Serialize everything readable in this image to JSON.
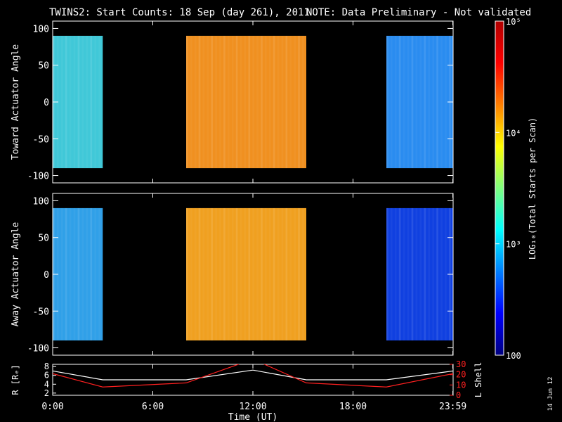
{
  "title": {
    "main": "TWINS2: Start Counts: 18 Sep (day 261), 2011",
    "note": "NOTE: Data Preliminary - Not validated",
    "note_color": "#ff2020"
  },
  "stamp": "14 Jun 12",
  "chart_data": [
    {
      "type": "heatmap",
      "name": "toward-panel",
      "ylabel": "Toward Actuator Angle",
      "ylim": [
        -110,
        110
      ],
      "yticks": [
        "100",
        "50",
        "0",
        "-50",
        "-100"
      ],
      "ytick_values": [
        100,
        50,
        0,
        -50,
        -100
      ],
      "x_range_hours": [
        0,
        24
      ],
      "angle_range": [
        -90,
        90
      ],
      "data_blocks": [
        {
          "start": 0.0,
          "end": 3.0,
          "level": "mid-high",
          "color": "#40c8d8"
        },
        {
          "start": 8.0,
          "end": 15.2,
          "level": "high",
          "color": "#f09020"
        },
        {
          "start": 20.0,
          "end": 24.0,
          "level": "mid-low",
          "color": "#2a8cf0"
        }
      ]
    },
    {
      "type": "heatmap",
      "name": "away-panel",
      "ylabel": "Away Actuator Angle",
      "ylim": [
        -110,
        110
      ],
      "yticks": [
        "100",
        "50",
        "0",
        "-50",
        "-100"
      ],
      "ytick_values": [
        100,
        50,
        0,
        -50,
        -100
      ],
      "x_range_hours": [
        0,
        24
      ],
      "angle_range": [
        -90,
        90
      ],
      "data_blocks": [
        {
          "start": 0.0,
          "end": 3.0,
          "level": "mid",
          "color": "#30a0e8"
        },
        {
          "start": 8.0,
          "end": 15.2,
          "level": "high",
          "color": "#f0a020"
        },
        {
          "start": 20.0,
          "end": 24.0,
          "level": "low",
          "color": "#1040e0"
        }
      ]
    },
    {
      "type": "line",
      "name": "orbit-panel",
      "ylabel_left": "R [Rₑ]",
      "ylabel_right": "L Shell",
      "yticks_left": [
        "8",
        "6",
        "4",
        "2"
      ],
      "ytick_values_left": [
        8,
        6,
        4,
        2
      ],
      "ylim_left": [
        1.5,
        8.5
      ],
      "yticks_right": [
        "30",
        "20",
        "10",
        "0"
      ],
      "ytick_values_right": [
        30,
        20,
        10,
        0
      ],
      "ylim_right": [
        0,
        30
      ],
      "x": [
        0,
        3,
        8,
        12,
        15.2,
        20,
        24
      ],
      "series": [
        {
          "name": "R",
          "color": "#ffffff",
          "values": [
            7.0,
            5.0,
            5.0,
            7.2,
            5.0,
            5.0,
            7.0
          ]
        },
        {
          "name": "L Shell",
          "color": "#ff2020",
          "values": [
            21,
            8,
            12,
            35,
            12,
            8,
            21
          ]
        }
      ]
    }
  ],
  "xaxis": {
    "label": "Time (UT)",
    "ticks": [
      "0:00",
      "6:00",
      "12:00",
      "18:00",
      "23:59"
    ],
    "tick_values": [
      0,
      6,
      12,
      18,
      23.983
    ]
  },
  "colorbar": {
    "label": "LOG₁₀(Total Starts per Scan)",
    "ticks": [
      "10⁵",
      "10⁴",
      "10³",
      "100"
    ],
    "tick_values": [
      100000,
      10000,
      1000,
      100
    ],
    "scale": "log",
    "range": [
      100,
      100000
    ],
    "colors": [
      "#00007f",
      "#0000ff",
      "#007fff",
      "#00ffff",
      "#7fff7f",
      "#ffff00",
      "#ff7f00",
      "#ff0000",
      "#b00000"
    ]
  }
}
